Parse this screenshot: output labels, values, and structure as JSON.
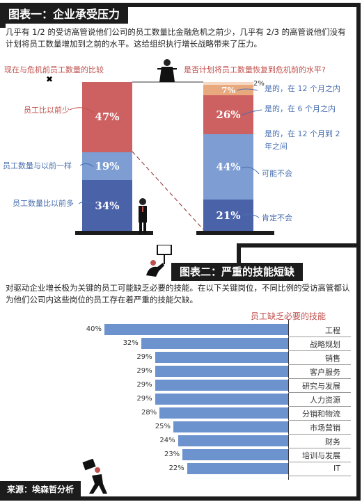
{
  "chart1": {
    "title": "图表一：企业承受压力",
    "intro": "几乎有 1/2 的受访高管说他们公司的员工数量比金融危机之前少，几乎有 2/3 的高管说他们没有计划将员工数量增加到之前的水平。这给组织执行增长战略带来了压力。",
    "left_header": "现在与危机前员工数量的比较",
    "right_header": "是否计划将员工数量恢复到危机前的水平?",
    "left_bar": [
      {
        "label": "员工比以前少",
        "value": "47%",
        "pct": 47,
        "color": "#cd6060"
      },
      {
        "label": "员工数量与以前一样",
        "value": "19%",
        "pct": 19,
        "color": "#7d9dd3"
      },
      {
        "label": "员工数量比以前多",
        "value": "34%",
        "pct": 34,
        "color": "#4a62a8"
      }
    ],
    "right_bar": [
      {
        "label": "是的，在 12 个月之内",
        "value": "2%",
        "pct": 2,
        "color": "#f6d8c2"
      },
      {
        "label": "是的，在 6 个月之内",
        "value": "7%",
        "pct": 7,
        "color": "#e8a97e"
      },
      {
        "label": "是的，在 12 个月到 2 年之间",
        "value": "26%",
        "pct": 26,
        "color": "#cd6060"
      },
      {
        "label": "可能不会",
        "value": "44%",
        "pct": 44,
        "color": "#7d9dd3"
      },
      {
        "label": "肯定不会",
        "value": "21%",
        "pct": 21,
        "color": "#4a62a8"
      }
    ]
  },
  "chart2": {
    "title": "图表二：严重的技能短缺",
    "intro": "对驱动企业增长极为关键的员工可能缺乏必要的技能。在以下关键岗位，不同比例的受访高管都认为他们公司内这些岗位的员工存在着严重的技能欠缺。",
    "header": "员工缺乏必要的技能"
  },
  "chart_data": [
    {
      "type": "bar",
      "title": "现在与危机前员工数量的比较",
      "categories": [
        "员工比以前少",
        "员工数量与以前一样",
        "员工数量比以前多"
      ],
      "values": [
        47,
        19,
        34
      ]
    },
    {
      "type": "bar",
      "title": "是否计划将员工数量恢复到危机前的水平?",
      "categories": [
        "是的，在 12 个月之内",
        "是的，在 6 个月之内",
        "是的，在 12 个月到 2 年之间",
        "可能不会",
        "肯定不会"
      ],
      "values": [
        2,
        7,
        26,
        44,
        21
      ]
    },
    {
      "type": "bar",
      "title": "员工缺乏必要的技能",
      "categories": [
        "工程",
        "战略规划",
        "销售",
        "客户服务",
        "研究与发展",
        "人力资源",
        "分销和物流",
        "市场营销",
        "财务",
        "培训与发展",
        "IT"
      ],
      "values": [
        40,
        32,
        29,
        29,
        29,
        29,
        28,
        25,
        24,
        23,
        22
      ],
      "value_labels": [
        "40%",
        "32%",
        "29%",
        "29%",
        "29%",
        "29%",
        "28%",
        "25%",
        "24%",
        "23%",
        "22%"
      ]
    }
  ],
  "source": "来源：埃森哲分析",
  "colors": {
    "accent_red": "#c0504d",
    "bar_blue": "#6d93cf",
    "frame": "#1c1c1c"
  }
}
